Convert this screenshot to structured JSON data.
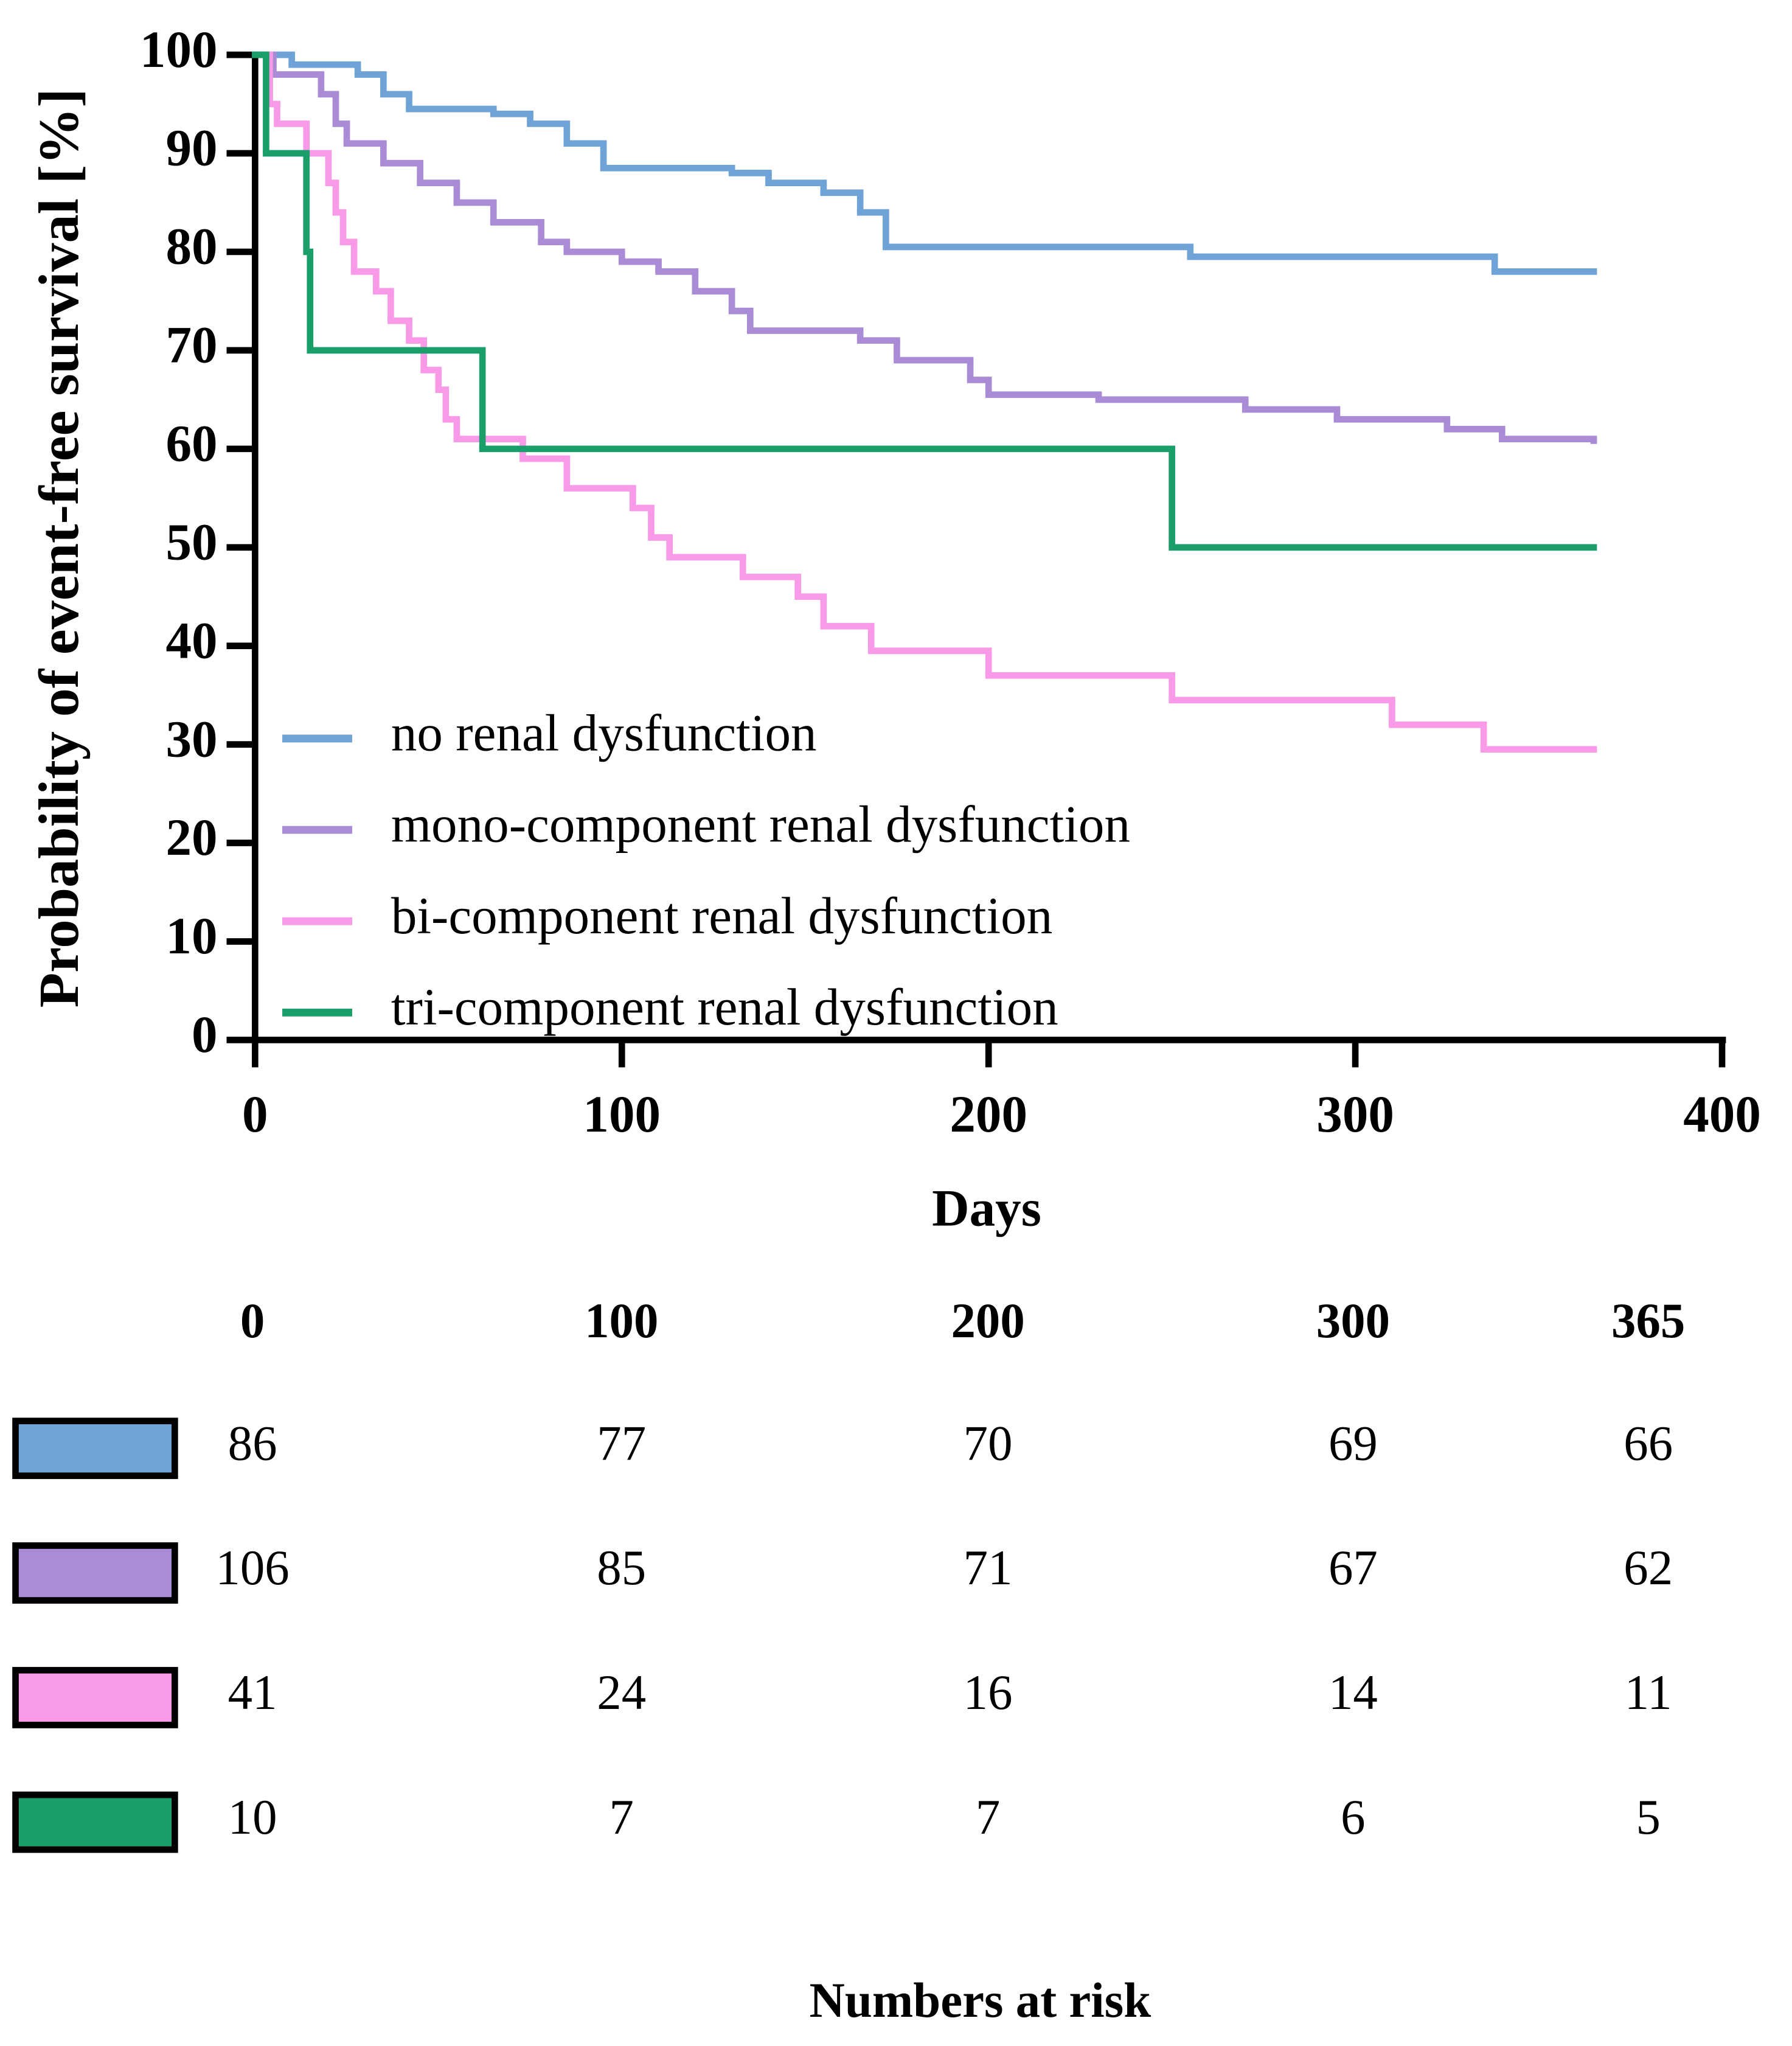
{
  "chart_data": {
    "type": "step",
    "x_label": "Days",
    "y_label": "Probability of event-free survival [%]",
    "xlim": [
      0,
      400
    ],
    "xticks": [
      0,
      100,
      200,
      300,
      400
    ],
    "ylim": [
      0,
      100
    ],
    "yticks": [
      0,
      10,
      20,
      30,
      40,
      50,
      60,
      70,
      80,
      90,
      100
    ],
    "series": [
      {
        "name": "no renal dysfunction",
        "color": "#6fa3d8",
        "x": [
          0,
          10,
          28,
          35,
          42,
          65,
          75,
          85,
          95,
          130,
          140,
          155,
          165,
          172,
          255,
          338,
          365
        ],
        "values": [
          100,
          99,
          98,
          96,
          94.5,
          94,
          93,
          91,
          88.5,
          88,
          87,
          86,
          84,
          80.5,
          79.5,
          78,
          78
        ]
      },
      {
        "name": "mono-component renal dysfunction",
        "color": "#a98bd6",
        "x": [
          0,
          5,
          18,
          22,
          25,
          35,
          45,
          55,
          65,
          78,
          85,
          100,
          110,
          120,
          130,
          135,
          165,
          175,
          195,
          200,
          230,
          270,
          295,
          325,
          340,
          365
        ],
        "values": [
          100,
          98,
          96,
          93,
          91,
          89,
          87,
          85,
          83,
          81,
          80,
          79,
          78,
          76,
          74,
          72,
          71,
          69,
          67,
          65.5,
          65,
          64,
          63,
          62,
          61,
          60.5
        ]
      },
      {
        "name": "bi-component renal dysfunction",
        "color": "#f99ae8",
        "x": [
          0,
          4,
          6,
          14,
          20,
          22,
          24,
          27,
          33,
          37,
          42,
          46,
          50,
          52,
          55,
          73,
          85,
          103,
          108,
          113,
          133,
          148,
          155,
          168,
          200,
          250,
          310,
          335,
          365
        ],
        "values": [
          100,
          95,
          93,
          90,
          87,
          84,
          81,
          78,
          76,
          73,
          71,
          68,
          66,
          63,
          61,
          59,
          56,
          54,
          51,
          49,
          47,
          45,
          42,
          39.5,
          37,
          34.5,
          32,
          29.5,
          29.5
        ]
      },
      {
        "name": "tri-component renal dysfunction",
        "color": "#1a9e6a",
        "x": [
          0,
          3,
          14,
          15,
          62,
          250,
          365
        ],
        "values": [
          100,
          90,
          80,
          70,
          60,
          50,
          50
        ]
      }
    ]
  },
  "risk_table": {
    "title": "Numbers at risk",
    "columns": [
      0,
      100,
      200,
      300,
      365
    ],
    "rows": [
      [
        86,
        77,
        70,
        69,
        66
      ],
      [
        106,
        85,
        71,
        67,
        62
      ],
      [
        41,
        24,
        16,
        14,
        11
      ],
      [
        10,
        7,
        7,
        6,
        5
      ]
    ]
  }
}
